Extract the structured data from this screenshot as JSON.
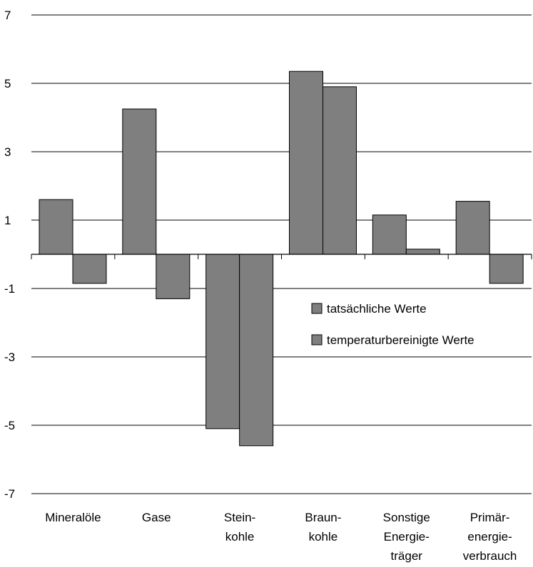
{
  "chart_data": {
    "type": "bar",
    "title": "",
    "xlabel": "",
    "ylabel": "",
    "ylim": [
      -7,
      7
    ],
    "yticks": [
      7,
      5,
      3,
      1,
      -1,
      -3,
      -5,
      -7
    ],
    "ytick_labels": [
      "7",
      "5",
      "3",
      "1",
      "-1",
      "-3",
      "-5",
      "-7"
    ],
    "grid": true,
    "legend_position": "right",
    "categories": [
      [
        "Mineralöle"
      ],
      [
        "Gase"
      ],
      [
        "Stein-",
        "kohle"
      ],
      [
        "Braun-",
        "kohle"
      ],
      [
        "Sonstige",
        "Energie-",
        "träger"
      ],
      [
        "Primär-",
        "energie-",
        "verbrauch"
      ]
    ],
    "series": [
      {
        "name": "tatsächliche Werte",
        "color": "#7f7f7f",
        "values": [
          1.6,
          4.25,
          -5.1,
          5.35,
          1.15,
          1.55
        ]
      },
      {
        "name": "temperaturbereinigte Werte",
        "color": "#7f7f7f",
        "values": [
          -0.85,
          -1.3,
          -5.6,
          4.9,
          0.15,
          -0.85
        ]
      }
    ]
  }
}
